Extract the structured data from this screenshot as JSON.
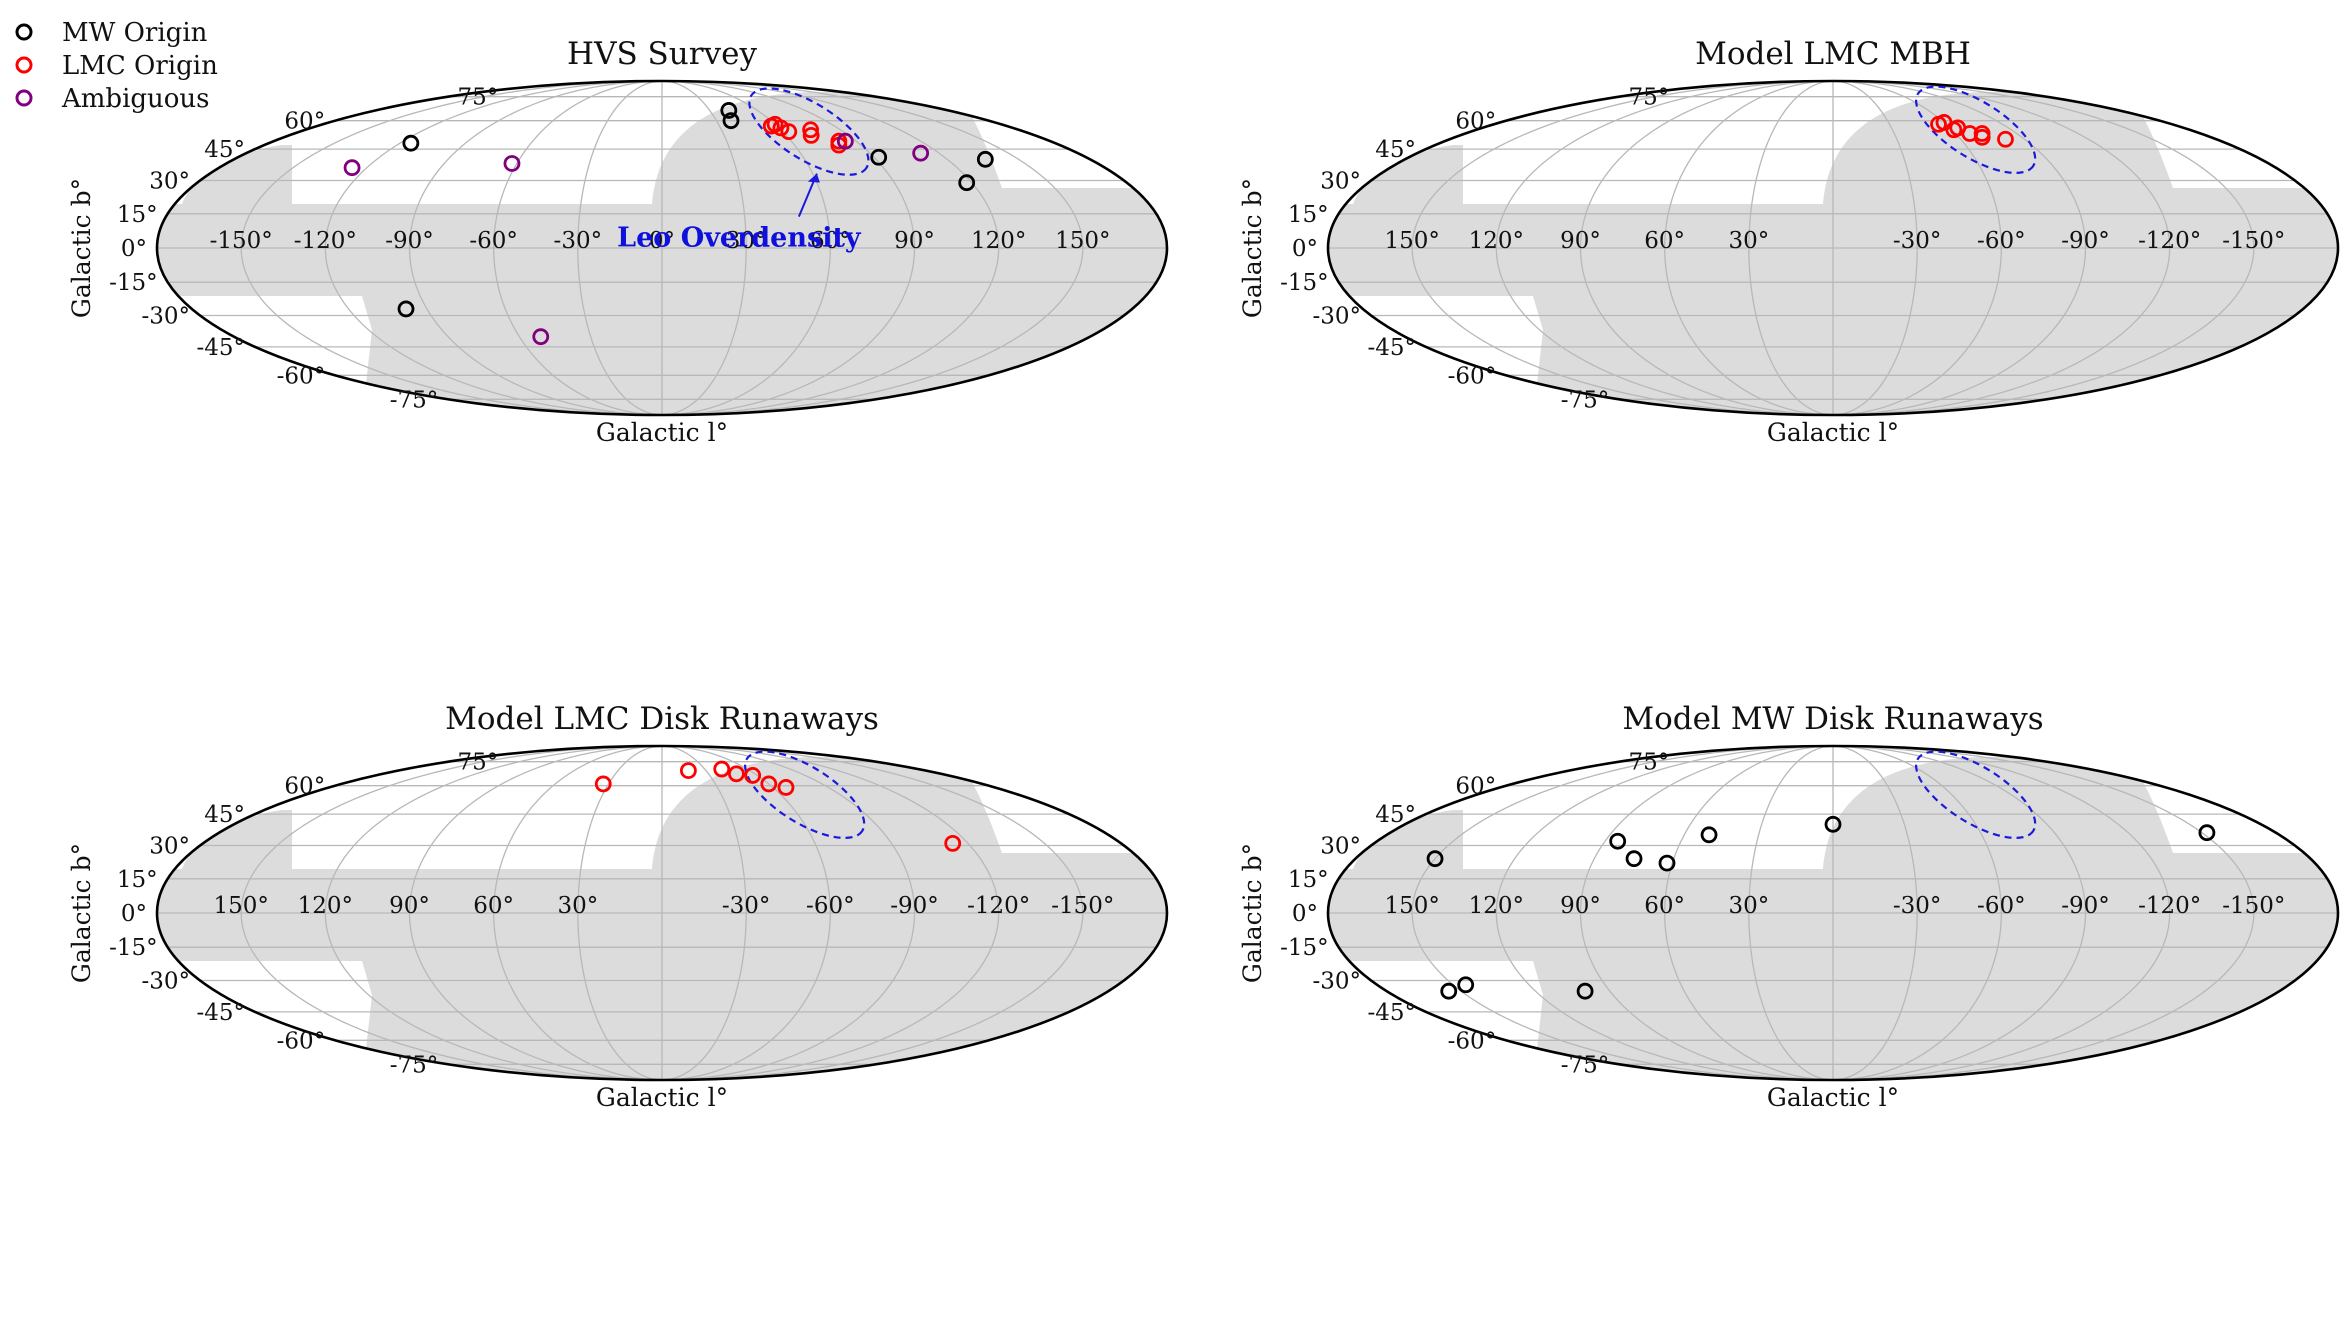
{
  "legend": [
    {
      "name": "MW Origin",
      "color": "#000000"
    },
    {
      "name": "LMC Origin",
      "color": "#ff0000"
    },
    {
      "name": "Ambiguous",
      "color": "#800080"
    }
  ],
  "colors": {
    "footprint": "#dcdcdc",
    "grid": "#b8b8b8",
    "leo": "#1a1add",
    "mw": "#000000",
    "lmc": "#ff0000",
    "amb": "#800080"
  },
  "chart_data": [
    {
      "type": "scatter",
      "projection": "mollweide",
      "title": "HVS Survey",
      "xlabel": "Galactic l°",
      "ylabel": "Galactic b°",
      "lon_direction": "increasing-right",
      "footprint": "A",
      "x_ticks": [
        "-150°",
        "-120°",
        "-90°",
        "-60°",
        "-30°",
        "0°",
        "30°",
        "60°",
        "90°",
        "120°",
        "150°"
      ],
      "x_tick_values": [
        -150,
        -120,
        -90,
        -60,
        -30,
        0,
        30,
        60,
        90,
        120,
        150
      ],
      "y_ticks": [
        "75°",
        "60°",
        "45°",
        "30°",
        "15°",
        "0°",
        "-15°",
        "-30°",
        "-45°",
        "-60°",
        "-75°"
      ],
      "y_tick_values": [
        75,
        60,
        45,
        30,
        15,
        0,
        -15,
        -30,
        -45,
        -60,
        -75
      ],
      "leo_ellipse": {
        "lon": 73,
        "lat": 54,
        "label": "Leo Overdensity"
      },
      "points": [
        {
          "l": -115,
          "b": 48,
          "group": "MW Origin"
        },
        {
          "l": -98,
          "b": -27,
          "group": "MW Origin"
        },
        {
          "l": 38,
          "b": 60,
          "group": "MW Origin"
        },
        {
          "l": 42,
          "b": 66,
          "group": "MW Origin"
        },
        {
          "l": 92,
          "b": 41,
          "group": "MW Origin"
        },
        {
          "l": 136,
          "b": 40,
          "group": "MW Origin"
        },
        {
          "l": 118,
          "b": 29,
          "group": "MW Origin"
        },
        {
          "l": 57,
          "b": 57,
          "group": "LMC Origin"
        },
        {
          "l": 60,
          "b": 58,
          "group": "LMC Origin"
        },
        {
          "l": 61,
          "b": 56,
          "group": "LMC Origin"
        },
        {
          "l": 63,
          "b": 54,
          "group": "LMC Origin"
        },
        {
          "l": 72,
          "b": 52,
          "group": "LMC Origin"
        },
        {
          "l": 75,
          "b": 55,
          "group": "LMC Origin"
        },
        {
          "l": 80,
          "b": 47,
          "group": "LMC Origin"
        },
        {
          "l": 82,
          "b": 49,
          "group": "LMC Origin"
        },
        {
          "l": -126,
          "b": 36,
          "group": "Ambiguous"
        },
        {
          "l": -62,
          "b": 38,
          "group": "Ambiguous"
        },
        {
          "l": -51,
          "b": -40,
          "group": "Ambiguous"
        },
        {
          "l": 85,
          "b": 49,
          "group": "Ambiguous"
        },
        {
          "l": 112,
          "b": 43,
          "group": "Ambiguous"
        }
      ]
    },
    {
      "type": "scatter",
      "projection": "mollweide",
      "title": "Model LMC MBH",
      "xlabel": "Galactic l°",
      "ylabel": "Galactic b°",
      "lon_direction": "decreasing-right",
      "footprint": "B",
      "x_ticks": [
        "150°",
        "120°",
        "90°",
        "60°",
        "30°",
        "-30°",
        "-60°",
        "-90°",
        "-120°",
        "-150°"
      ],
      "x_tick_values": [
        150,
        120,
        90,
        60,
        30,
        -30,
        -60,
        -90,
        -120,
        -150
      ],
      "y_ticks": [
        "75°",
        "60°",
        "45°",
        "30°",
        "15°",
        "0°",
        "-15°",
        "-30°",
        "-45°",
        "-60°",
        "-75°"
      ],
      "y_tick_values": [
        75,
        60,
        45,
        30,
        15,
        0,
        -15,
        -30,
        -45,
        -60,
        -75
      ],
      "leo_ellipse": {
        "lon": -72,
        "lat": 55,
        "label": ""
      },
      "points": [
        {
          "l": -56,
          "b": 58,
          "group": "LMC Origin"
        },
        {
          "l": -60,
          "b": 59,
          "group": "LMC Origin"
        },
        {
          "l": -61,
          "b": 55,
          "group": "LMC Origin"
        },
        {
          "l": -64,
          "b": 56,
          "group": "LMC Origin"
        },
        {
          "l": -67,
          "b": 53,
          "group": "LMC Origin"
        },
        {
          "l": -71,
          "b": 51,
          "group": "LMC Origin"
        },
        {
          "l": -73,
          "b": 53,
          "group": "LMC Origin"
        },
        {
          "l": -81,
          "b": 50,
          "group": "LMC Origin"
        }
      ]
    },
    {
      "type": "scatter",
      "projection": "mollweide",
      "title": "Model LMC Disk Runaways",
      "xlabel": "Galactic l°",
      "ylabel": "Galactic b°",
      "lon_direction": "decreasing-right",
      "footprint": "A",
      "x_ticks": [
        "150°",
        "120°",
        "90°",
        "60°",
        "30°",
        "-30°",
        "-60°",
        "-90°",
        "-120°",
        "-150°"
      ],
      "x_tick_values": [
        150,
        120,
        90,
        60,
        30,
        -30,
        -60,
        -90,
        -120,
        -150
      ],
      "y_ticks": [
        "75°",
        "60°",
        "45°",
        "30°",
        "15°",
        "0°",
        "-15°",
        "-30°",
        "-45°",
        "-60°",
        "-75°"
      ],
      "y_tick_values": [
        75,
        60,
        45,
        30,
        15,
        0,
        -15,
        -30,
        -45,
        -60,
        -75
      ],
      "leo_ellipse": {
        "lon": -72,
        "lat": 55,
        "label": ""
      },
      "points": [
        {
          "l": 33,
          "b": 61,
          "group": "LMC Origin"
        },
        {
          "l": -18,
          "b": 69,
          "group": "LMC Origin"
        },
        {
          "l": -42,
          "b": 70,
          "group": "LMC Origin"
        },
        {
          "l": -48,
          "b": 67,
          "group": "LMC Origin"
        },
        {
          "l": -57,
          "b": 66,
          "group": "LMC Origin"
        },
        {
          "l": -60,
          "b": 61,
          "group": "LMC Origin"
        },
        {
          "l": -67,
          "b": 59,
          "group": "LMC Origin"
        },
        {
          "l": -114,
          "b": 31,
          "group": "LMC Origin"
        }
      ]
    },
    {
      "type": "scatter",
      "projection": "mollweide",
      "title": "Model MW Disk Runaways",
      "xlabel": "Galactic l°",
      "ylabel": "Galactic b°",
      "lon_direction": "decreasing-right",
      "footprint": "B",
      "x_ticks": [
        "150°",
        "120°",
        "90°",
        "60°",
        "30°",
        "-30°",
        "-60°",
        "-90°",
        "-120°",
        "-150°"
      ],
      "x_tick_values": [
        150,
        120,
        90,
        60,
        30,
        -30,
        -60,
        -90,
        -120,
        -150
      ],
      "y_ticks": [
        "75°",
        "60°",
        "45°",
        "30°",
        "15°",
        "0°",
        "-15°",
        "-30°",
        "-45°",
        "-60°",
        "-75°"
      ],
      "y_tick_values": [
        75,
        60,
        45,
        30,
        15,
        0,
        -15,
        -30,
        -45,
        -60,
        -75
      ],
      "leo_ellipse": {
        "lon": -72,
        "lat": 55,
        "label": ""
      },
      "points": [
        {
          "l": 150,
          "b": 24,
          "group": "MW Origin"
        },
        {
          "l": 85,
          "b": 32,
          "group": "MW Origin"
        },
        {
          "l": 75,
          "b": 24,
          "group": "MW Origin"
        },
        {
          "l": 62,
          "b": 22,
          "group": "MW Origin"
        },
        {
          "l": 50,
          "b": 35,
          "group": "MW Origin"
        },
        {
          "l": 0,
          "b": 40,
          "group": "MW Origin"
        },
        {
          "l": -152,
          "b": 36,
          "group": "MW Origin"
        },
        {
          "l": 155,
          "b": -35,
          "group": "MW Origin"
        },
        {
          "l": 145,
          "b": -32,
          "group": "MW Origin"
        },
        {
          "l": 100,
          "b": -35,
          "group": "MW Origin"
        }
      ]
    }
  ]
}
